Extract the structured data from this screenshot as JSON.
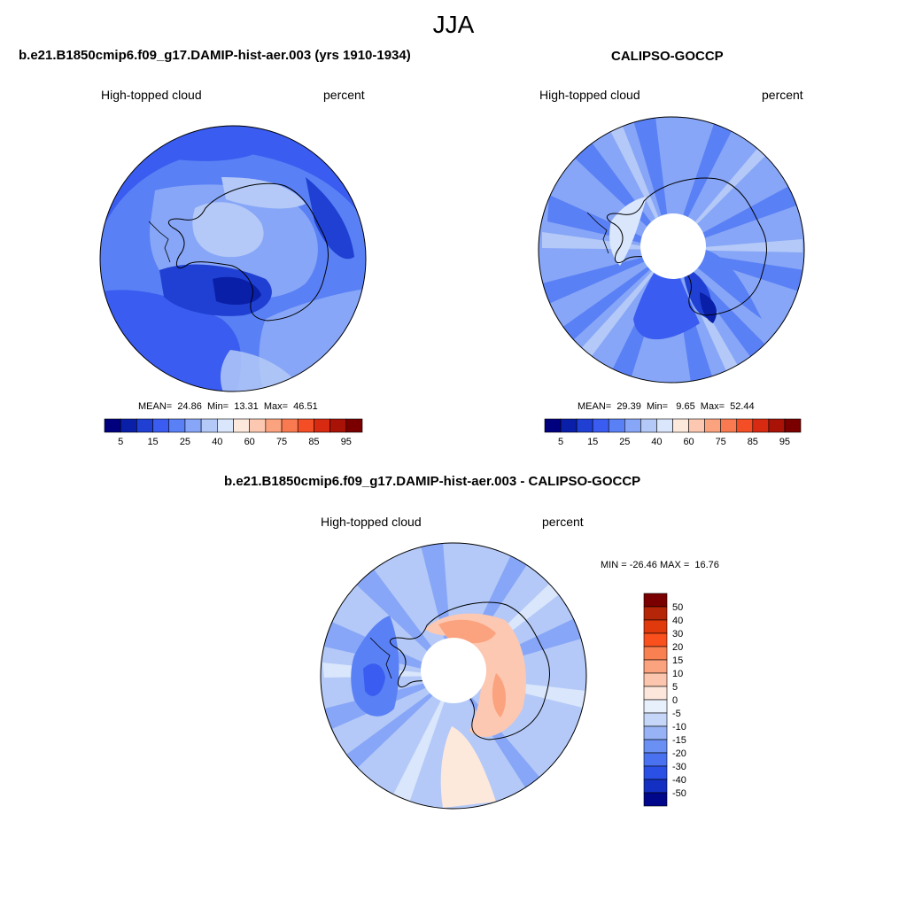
{
  "figure": {
    "season": "JJA"
  },
  "panels": [
    {
      "id": "model",
      "title": "b.e21.B1850cmip6.f09_g17.DAMIP-hist-aer.003 (yrs 1910-1934)",
      "left_label": "High-topped cloud",
      "right_label": "percent",
      "stats": "MEAN=  24.86  Min=  13.31  Max=  46.51",
      "colorbar": {
        "colors": [
          "#00007f",
          "#0a1fa8",
          "#1f40d2",
          "#3a5cf0",
          "#5a80f5",
          "#87a6f7",
          "#b4c9f7",
          "#d9e6fb",
          "#fde8dc",
          "#fcc8b2",
          "#fba27e",
          "#f97a50",
          "#f34e26",
          "#d82a10",
          "#a81207",
          "#7a0000"
        ],
        "ticks": [
          "5",
          "15",
          "25",
          "40",
          "60",
          "75",
          "85",
          "95"
        ]
      }
    },
    {
      "id": "obs",
      "title": "CALIPSO-GOCCP",
      "left_label": "High-topped cloud",
      "right_label": "percent",
      "stats": "MEAN=  29.39  Min=   9.65  Max=  52.44",
      "colorbar": {
        "colors": [
          "#00007f",
          "#0a1fa8",
          "#1f40d2",
          "#3a5cf0",
          "#5a80f5",
          "#87a6f7",
          "#b4c9f7",
          "#d9e6fb",
          "#fde8dc",
          "#fcc8b2",
          "#fba27e",
          "#f97a50",
          "#f34e26",
          "#d82a10",
          "#a81207",
          "#7a0000"
        ],
        "ticks": [
          "5",
          "15",
          "25",
          "40",
          "60",
          "75",
          "85",
          "95"
        ]
      }
    },
    {
      "id": "diff",
      "title": "b.e21.B1850cmip6.f09_g17.DAMIP-hist-aer.003 - CALIPSO-GOCCP",
      "left_label": "High-topped cloud",
      "right_label": "percent",
      "stats": "MIN = -26.46 MAX =  16.76",
      "colorbar": {
        "colors": [
          "#7a0000",
          "#b52507",
          "#e0390c",
          "#f9501d",
          "#f98050",
          "#fba27e",
          "#fcc5ad",
          "#fde6dc",
          "#e8f0fc",
          "#c6d6f8",
          "#98b3f5",
          "#6a90f3",
          "#4a72f0",
          "#2a50e6",
          "#1430c2",
          "#00078a"
        ],
        "ticks": [
          "50",
          "40",
          "30",
          "20",
          "15",
          "10",
          "5",
          "0",
          "-5",
          "-10",
          "-15",
          "-20",
          "-30",
          "-40",
          "-50"
        ]
      }
    }
  ]
}
